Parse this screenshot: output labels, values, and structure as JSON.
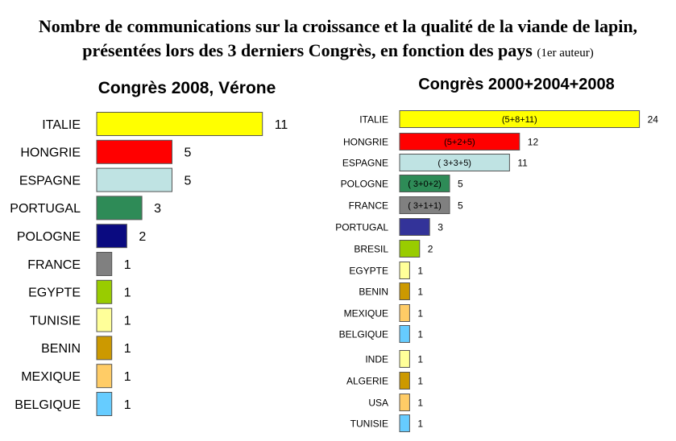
{
  "title_line1": "Nombre de communications sur la croissance et la qualité de la viande de lapin,",
  "title_line2": "présentées lors des 3 derniers Congrès, en fonction des pays",
  "title_note": "(1er auteur)",
  "chart_data": [
    {
      "type": "bar",
      "orientation": "horizontal",
      "title": "Congrès 2008, Vérone",
      "categories": [
        "ITALIE",
        "HONGRIE",
        "ESPAGNE",
        "PORTUGAL",
        "POLOGNE",
        "FRANCE",
        "EGYPTE",
        "TUNISIE",
        "BENIN",
        "MEXIQUE",
        "BELGIQUE"
      ],
      "values": [
        11,
        5,
        5,
        3,
        2,
        1,
        1,
        1,
        1,
        1,
        1
      ],
      "colors": [
        "#ffff00",
        "#ff0000",
        "#bfe3e3",
        "#2e8b57",
        "#0a0a80",
        "#808080",
        "#99cc00",
        "#ffff99",
        "#cc9900",
        "#ffcc66",
        "#66ccff"
      ]
    },
    {
      "type": "bar",
      "orientation": "horizontal",
      "title": "Congrès 2000+2004+2008",
      "categories": [
        "ITALIE",
        "HONGRIE",
        "ESPAGNE",
        "POLOGNE",
        "FRANCE",
        "PORTUGAL",
        "BRESIL",
        "EGYPTE",
        "BENIN",
        "MEXIQUE",
        "BELGIQUE",
        "INDE",
        "ALGERIE",
        "USA",
        "TUNISIE"
      ],
      "values": [
        24,
        12,
        11,
        5,
        5,
        3,
        2,
        1,
        1,
        1,
        1,
        1,
        1,
        1,
        1
      ],
      "breakdown": [
        "(5+8+11)",
        "(5+2+5)",
        "( 3+3+5)",
        "( 3+0+2)",
        "( 3+1+1)",
        "",
        "",
        "",
        "",
        "",
        "",
        "",
        "",
        "",
        ""
      ],
      "colors": [
        "#ffff00",
        "#ff0000",
        "#bfe3e3",
        "#2e8b57",
        "#808080",
        "#333399",
        "#99cc00",
        "#ffff99",
        "#cc9900",
        "#ffcc66",
        "#66ccff",
        "#ffff99",
        "#cc9900",
        "#ffcc66",
        "#66ccff"
      ]
    }
  ]
}
